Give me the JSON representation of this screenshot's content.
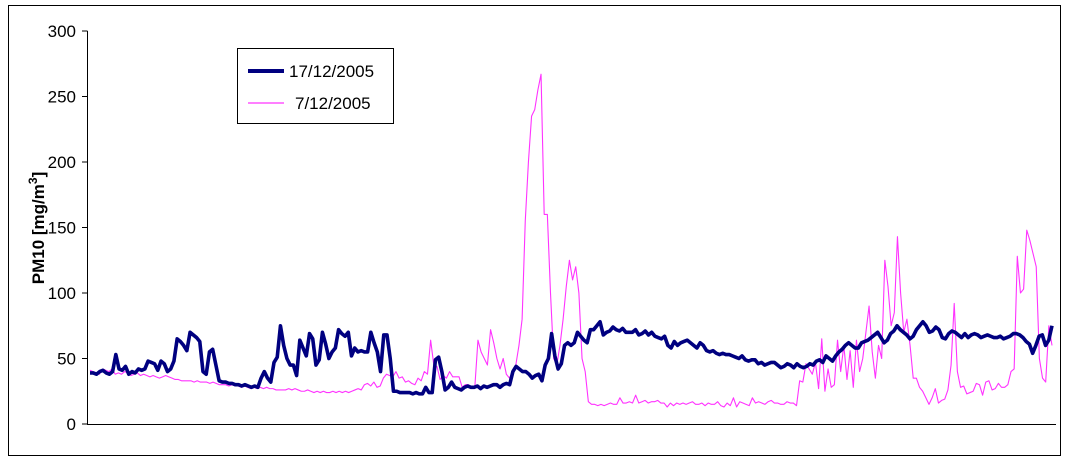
{
  "chart_data": {
    "type": "line",
    "title": "",
    "xlabel": "",
    "ylabel": "PM10 [mg/m³]",
    "ylabel_base": "PM10 [mg/m",
    "ylabel_sup": "3",
    "ylabel_close": "]",
    "ylim": [
      0,
      300
    ],
    "yticks": [
      "0",
      "50",
      "100",
      "150",
      "200",
      "250",
      "300"
    ],
    "grid": false,
    "legend": "top-left",
    "series": [
      {
        "name": "17/12/2005",
        "color": "#000080",
        "values": [
          39,
          39,
          38,
          40,
          41,
          39,
          38,
          40,
          53,
          42,
          41,
          44,
          38,
          40,
          39,
          42,
          41,
          42,
          48,
          47,
          46,
          41,
          48,
          46,
          40,
          42,
          48,
          65,
          63,
          60,
          56,
          70,
          68,
          66,
          63,
          40,
          38,
          55,
          57,
          45,
          33,
          32,
          32,
          31,
          31,
          30,
          30,
          29,
          30,
          29,
          28,
          29,
          28,
          35,
          40,
          35,
          32,
          47,
          51,
          75,
          60,
          50,
          45,
          45,
          37,
          64,
          58,
          52,
          69,
          65,
          45,
          49,
          70,
          61,
          50,
          55,
          58,
          72,
          69,
          67,
          70,
          52,
          58,
          55,
          56,
          55,
          55,
          70,
          62,
          55,
          40,
          68,
          68,
          50,
          25,
          25,
          24,
          24,
          24,
          24,
          23,
          24,
          23,
          23,
          28,
          24,
          24,
          49,
          51,
          40,
          26,
          28,
          32,
          28,
          27,
          26,
          28,
          29,
          28,
          28,
          29,
          27,
          29,
          28,
          29,
          30,
          30,
          28,
          30,
          31,
          30,
          40,
          44,
          42,
          40,
          40,
          38,
          35,
          37,
          38,
          33,
          45,
          50,
          69,
          52,
          42,
          46,
          60,
          62,
          60,
          62,
          70,
          67,
          64,
          62,
          72,
          72,
          75,
          78,
          68,
          70,
          71,
          74,
          72,
          71,
          73,
          70,
          70,
          70,
          72,
          68,
          69,
          71,
          68,
          70,
          67,
          66,
          65,
          67,
          60,
          58,
          63,
          60,
          62,
          63,
          64,
          62,
          60,
          58,
          62,
          60,
          56,
          55,
          56,
          54,
          53,
          54,
          53,
          53,
          52,
          51,
          50,
          52,
          49,
          48,
          49,
          49,
          46,
          47,
          45,
          46,
          47,
          47,
          45,
          43,
          44,
          46,
          45,
          43,
          46,
          44,
          43,
          44,
          46,
          45,
          48,
          49,
          47,
          52,
          50,
          48,
          52,
          55,
          57,
          60,
          62,
          60,
          58,
          58,
          62,
          63,
          64,
          66,
          68,
          70,
          66,
          62,
          64,
          69,
          71,
          75,
          72,
          70,
          68,
          65,
          67,
          72,
          75,
          78,
          75,
          70,
          71,
          74,
          72,
          66,
          65,
          69,
          71,
          70,
          68,
          66,
          69,
          66,
          68,
          69,
          68,
          66,
          67,
          68,
          67,
          66,
          66,
          67,
          65,
          66,
          67,
          69,
          69,
          68,
          66,
          63,
          61,
          54,
          60,
          67,
          68,
          60,
          64,
          75
        ]
      },
      {
        "name": "7/12/2005",
        "color": "#ff33ff",
        "values": [
          41,
          40,
          39,
          38,
          42,
          41,
          40,
          42,
          38,
          39,
          38,
          40,
          39,
          37,
          38,
          39,
          37,
          38,
          37,
          36,
          37,
          36,
          35,
          36,
          37,
          36,
          35,
          34,
          34,
          33,
          33,
          33,
          33,
          32,
          33,
          32,
          32,
          32,
          31,
          32,
          31,
          30,
          30,
          30,
          29,
          30,
          29,
          29,
          28,
          29,
          28,
          27,
          28,
          27,
          28,
          27,
          28,
          27,
          27,
          26,
          26,
          26,
          26,
          27,
          26,
          27,
          26,
          25,
          25,
          26,
          25,
          24,
          25,
          24,
          25,
          24,
          24,
          25,
          24,
          25,
          24,
          25,
          24,
          25,
          26,
          27,
          26,
          30,
          31,
          29,
          32,
          28,
          29,
          35,
          38,
          37,
          36,
          40,
          35,
          36,
          32,
          33,
          31,
          30,
          35,
          33,
          40,
          38,
          64,
          45,
          44,
          34,
          37,
          35,
          40,
          36,
          36,
          36,
          28,
          30,
          30,
          28,
          28,
          64,
          55,
          50,
          45,
          72,
          62,
          50,
          42,
          50,
          38,
          35,
          40,
          45,
          60,
          80,
          155,
          200,
          235,
          240,
          255,
          267,
          160,
          160,
          100,
          50,
          45,
          60,
          80,
          105,
          125,
          110,
          120,
          100,
          50,
          40,
          17,
          15,
          15,
          14,
          15,
          14,
          15,
          16,
          15,
          15,
          20,
          16,
          16,
          17,
          16,
          22,
          16,
          17,
          18,
          16,
          17,
          17,
          18,
          16,
          16,
          13,
          16,
          14,
          16,
          15,
          16,
          15,
          16,
          17,
          15,
          15,
          16,
          14,
          16,
          15,
          15,
          17,
          14,
          13,
          16,
          14,
          20,
          13,
          17,
          16,
          15,
          14,
          20,
          16,
          17,
          16,
          15,
          17,
          18,
          16,
          16,
          15,
          15,
          17,
          16,
          16,
          14,
          33,
          32,
          46,
          42,
          38,
          47,
          27,
          65,
          25,
          42,
          28,
          30,
          64,
          40,
          60,
          34,
          56,
          28,
          64,
          40,
          50,
          70,
          90,
          55,
          35,
          60,
          50,
          125,
          105,
          75,
          85,
          143,
          100,
          70,
          80,
          60,
          35,
          35,
          28,
          25,
          20,
          15,
          20,
          27,
          16,
          18,
          19,
          26,
          45,
          92,
          40,
          28,
          29,
          23,
          24,
          25,
          31,
          30,
          22,
          32,
          33,
          26,
          27,
          31,
          28,
          28,
          30,
          40,
          42,
          128,
          100,
          103,
          148,
          140,
          130,
          120,
          50,
          35,
          32,
          75,
          60
        ]
      }
    ]
  }
}
